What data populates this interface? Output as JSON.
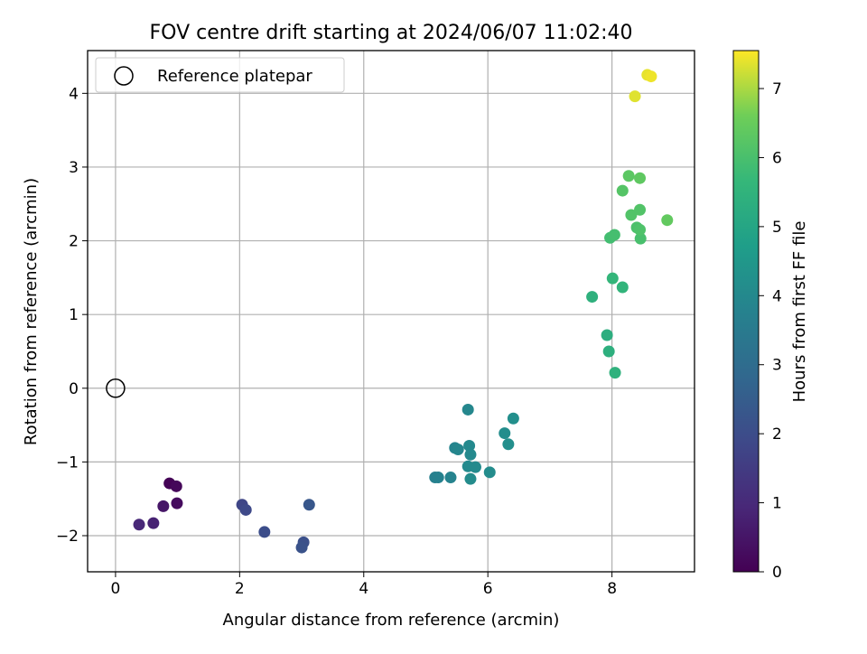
{
  "chart_data": {
    "type": "scatter",
    "title": "FOV centre drift starting at 2024/06/07 11:02:40",
    "xlabel": "Angular distance from reference (arcmin)",
    "ylabel": "Rotation from reference (arcmin)",
    "xlim": [
      -0.45,
      9.33
    ],
    "ylim": [
      -2.49,
      4.58
    ],
    "xticks": [
      0,
      2,
      4,
      6,
      8
    ],
    "yticks": [
      -2,
      -1,
      0,
      1,
      2,
      3,
      4
    ],
    "xtick_labels": [
      "0",
      "2",
      "4",
      "6",
      "8"
    ],
    "ytick_labels": [
      "−2",
      "−1",
      "0",
      "1",
      "2",
      "3",
      "4"
    ],
    "grid": true,
    "legend": {
      "placement": "top-left",
      "entries": [
        "Reference platepar"
      ]
    },
    "reference_point": {
      "x": 0,
      "y": 0,
      "label": "Reference platepar"
    },
    "colorbar": {
      "label": "Hours from first FF file",
      "colormap": "viridis",
      "range": [
        0,
        7.55
      ],
      "ticks": [
        0,
        1,
        2,
        3,
        4,
        5,
        6,
        7
      ],
      "tick_labels": [
        "0",
        "1",
        "2",
        "3",
        "4",
        "5",
        "6",
        "7"
      ]
    },
    "points": [
      {
        "x": 0.87,
        "y": -1.29,
        "hours": 0.05
      },
      {
        "x": 0.98,
        "y": -1.33,
        "hours": 0.15
      },
      {
        "x": 0.99,
        "y": -1.56,
        "hours": 0.25
      },
      {
        "x": 0.77,
        "y": -1.6,
        "hours": 0.5
      },
      {
        "x": 0.61,
        "y": -1.83,
        "hours": 0.8
      },
      {
        "x": 0.38,
        "y": -1.85,
        "hours": 0.95
      },
      {
        "x": 2.04,
        "y": -1.58,
        "hours": 1.8
      },
      {
        "x": 2.1,
        "y": -1.65,
        "hours": 1.9
      },
      {
        "x": 2.4,
        "y": -1.95,
        "hours": 2.0
      },
      {
        "x": 3.03,
        "y": -2.09,
        "hours": 2.1
      },
      {
        "x": 3.0,
        "y": -2.16,
        "hours": 2.15
      },
      {
        "x": 3.12,
        "y": -1.58,
        "hours": 2.3
      },
      {
        "x": 5.15,
        "y": -1.21,
        "hours": 3.7
      },
      {
        "x": 5.2,
        "y": -1.21,
        "hours": 3.75
      },
      {
        "x": 5.4,
        "y": -1.21,
        "hours": 3.8
      },
      {
        "x": 5.47,
        "y": -0.81,
        "hours": 3.85
      },
      {
        "x": 5.52,
        "y": -0.83,
        "hours": 3.9
      },
      {
        "x": 5.68,
        "y": -0.29,
        "hours": 3.95
      },
      {
        "x": 5.7,
        "y": -0.78,
        "hours": 4.0
      },
      {
        "x": 5.72,
        "y": -0.9,
        "hours": 4.0
      },
      {
        "x": 5.68,
        "y": -1.06,
        "hours": 4.05
      },
      {
        "x": 5.8,
        "y": -1.07,
        "hours": 4.05
      },
      {
        "x": 5.72,
        "y": -1.23,
        "hours": 4.1
      },
      {
        "x": 6.03,
        "y": -1.14,
        "hours": 4.1
      },
      {
        "x": 6.27,
        "y": -0.61,
        "hours": 4.15
      },
      {
        "x": 6.33,
        "y": -0.76,
        "hours": 4.2
      },
      {
        "x": 6.41,
        "y": -0.41,
        "hours": 4.2
      },
      {
        "x": 7.68,
        "y": 1.24,
        "hours": 5.4
      },
      {
        "x": 7.92,
        "y": 0.72,
        "hours": 5.3
      },
      {
        "x": 7.95,
        "y": 0.5,
        "hours": 5.35
      },
      {
        "x": 8.05,
        "y": 0.21,
        "hours": 5.45
      },
      {
        "x": 8.01,
        "y": 1.49,
        "hours": 5.6
      },
      {
        "x": 8.17,
        "y": 1.37,
        "hours": 5.55
      },
      {
        "x": 7.97,
        "y": 2.04,
        "hours": 5.9
      },
      {
        "x": 8.04,
        "y": 2.08,
        "hours": 5.95
      },
      {
        "x": 8.46,
        "y": 2.03,
        "hours": 6.0
      },
      {
        "x": 8.4,
        "y": 2.18,
        "hours": 6.05
      },
      {
        "x": 8.45,
        "y": 2.15,
        "hours": 6.1
      },
      {
        "x": 8.31,
        "y": 2.35,
        "hours": 6.15
      },
      {
        "x": 8.45,
        "y": 2.42,
        "hours": 6.15
      },
      {
        "x": 8.17,
        "y": 2.68,
        "hours": 6.2
      },
      {
        "x": 8.27,
        "y": 2.88,
        "hours": 6.3
      },
      {
        "x": 8.45,
        "y": 2.85,
        "hours": 6.35
      },
      {
        "x": 8.89,
        "y": 2.28,
        "hours": 6.4
      },
      {
        "x": 8.37,
        "y": 3.96,
        "hours": 7.35
      },
      {
        "x": 8.57,
        "y": 4.25,
        "hours": 7.4
      },
      {
        "x": 8.63,
        "y": 4.23,
        "hours": 7.45
      }
    ]
  }
}
